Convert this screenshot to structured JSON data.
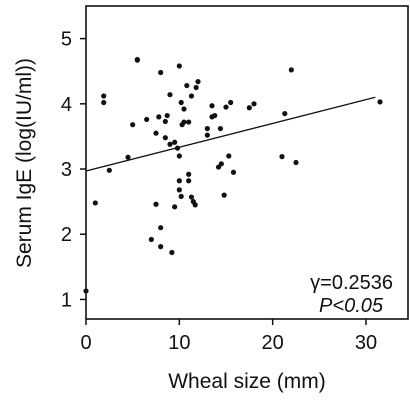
{
  "chart_data": {
    "type": "scatter",
    "xlabel": "Wheal size (mm)",
    "ylabel": "Serum IgE (log(IU/ml))",
    "xlim": [
      0,
      34.5
    ],
    "ylim": [
      0.7,
      5.5
    ],
    "xticks": [
      0,
      10,
      20,
      30
    ],
    "yticks": [
      1,
      2,
      3,
      4,
      5
    ],
    "grid": false,
    "annotations": {
      "r": "γ=0.2536",
      "p": "P<0.05"
    },
    "regression_line": {
      "x": [
        0,
        31
      ],
      "y": [
        2.97,
        4.1
      ]
    },
    "points": [
      [
        0,
        1.13
      ],
      [
        1,
        2.48
      ],
      [
        1.9,
        4.12
      ],
      [
        1.9,
        4.02
      ],
      [
        2.5,
        2.98
      ],
      [
        4.5,
        3.18
      ],
      [
        5,
        3.68
      ],
      [
        5.5,
        4.68
      ],
      [
        5.5,
        4.67
      ],
      [
        6.5,
        3.76
      ],
      [
        7,
        1.92
      ],
      [
        7.5,
        3.55
      ],
      [
        7.5,
        2.46
      ],
      [
        7.8,
        3.8
      ],
      [
        8,
        2.1
      ],
      [
        8,
        1.81
      ],
      [
        8,
        4.48
      ],
      [
        8.5,
        3.48
      ],
      [
        8.5,
        3.73
      ],
      [
        8.7,
        3.82
      ],
      [
        9,
        3.38
      ],
      [
        9,
        4.14
      ],
      [
        9.2,
        1.72
      ],
      [
        9.5,
        3.41
      ],
      [
        9.5,
        2.42
      ],
      [
        9.8,
        3.32
      ],
      [
        10,
        4.58
      ],
      [
        10,
        2.82
      ],
      [
        10,
        3.2
      ],
      [
        10,
        2.68
      ],
      [
        10.2,
        2.58
      ],
      [
        10.2,
        4.02
      ],
      [
        10.3,
        3.68
      ],
      [
        10.5,
        3.92
      ],
      [
        10.5,
        3.72
      ],
      [
        10.8,
        4.28
      ],
      [
        11,
        2.82
      ],
      [
        11,
        3.72
      ],
      [
        11,
        2.92
      ],
      [
        11.3,
        2.57
      ],
      [
        11.3,
        4.12
      ],
      [
        11.5,
        2.5
      ],
      [
        11.7,
        2.45
      ],
      [
        11.8,
        4.25
      ],
      [
        12,
        4.34
      ],
      [
        13,
        3.62
      ],
      [
        13,
        3.52
      ],
      [
        13.5,
        3.97
      ],
      [
        13.5,
        3.8
      ],
      [
        13.8,
        3.82
      ],
      [
        14.2,
        3.03
      ],
      [
        14.4,
        3.62
      ],
      [
        14.5,
        3.08
      ],
      [
        14.8,
        2.6
      ],
      [
        15,
        3.95
      ],
      [
        15.3,
        3.2
      ],
      [
        15.5,
        4.02
      ],
      [
        15.8,
        2.95
      ],
      [
        17.5,
        3.94
      ],
      [
        18,
        4.0
      ],
      [
        21,
        3.19
      ],
      [
        21.3,
        3.85
      ],
      [
        22,
        4.52
      ],
      [
        22.5,
        3.1
      ],
      [
        31.5,
        4.03
      ]
    ]
  }
}
